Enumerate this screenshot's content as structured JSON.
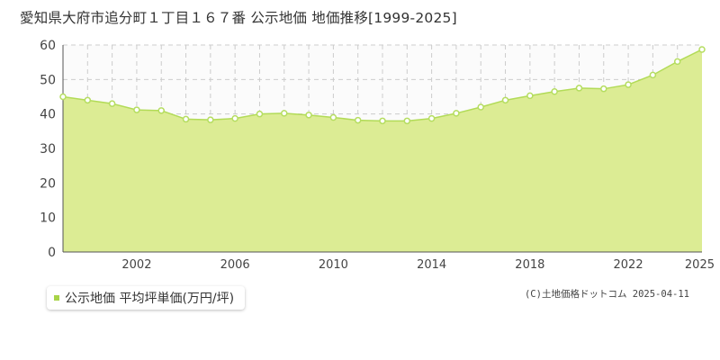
{
  "colors": {
    "fill": "#dcec94",
    "line": "#b2db57",
    "point_fill": "#ffffff",
    "point_stroke": "#b5dd60",
    "grid": "#cccccc",
    "legend_swatch": "#a8d448"
  },
  "legend": {
    "label": "公示地価 平均坪単価(万円/坪)"
  },
  "credit": "(C)土地価格ドットコム 2025-04-11",
  "chart_data": {
    "type": "area",
    "title": "愛知県大府市追分町１丁目１６７番 公示地価 地価推移[1999-2025]",
    "xlabel": "",
    "ylabel": "",
    "x": [
      1999,
      2000,
      2001,
      2002,
      2003,
      2004,
      2005,
      2006,
      2007,
      2008,
      2009,
      2010,
      2011,
      2012,
      2013,
      2014,
      2015,
      2016,
      2017,
      2018,
      2019,
      2020,
      2021,
      2022,
      2023,
      2024,
      2025
    ],
    "series": [
      {
        "name": "公示地価 平均坪単価(万円/坪)",
        "values": [
          45.0,
          44.0,
          43.0,
          41.2,
          41.0,
          38.5,
          38.3,
          38.7,
          40.0,
          40.2,
          39.7,
          39.0,
          38.2,
          38.0,
          38.0,
          38.7,
          40.2,
          42.0,
          44.0,
          45.3,
          46.5,
          47.5,
          47.3,
          48.5,
          51.3,
          55.2,
          58.7
        ]
      }
    ],
    "xlim": [
      1999,
      2025
    ],
    "ylim": [
      0,
      60
    ],
    "y_ticks": [
      0,
      10,
      20,
      30,
      40,
      50,
      60
    ],
    "x_tick_labels": [
      "2002",
      "2006",
      "2010",
      "2014",
      "2018",
      "2022",
      "2025"
    ],
    "grid": true,
    "legend_position": "bottom-left"
  }
}
